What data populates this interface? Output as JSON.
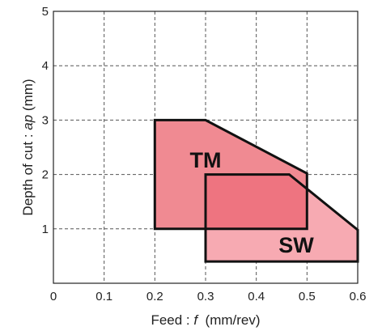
{
  "chart_data": {
    "type": "area",
    "title": "",
    "xlabel_prefix": "Feed : ",
    "xlabel_var": "f",
    "xlabel_unit": "  (mm/rev)",
    "ylabel_prefix": "Depth of cut : ",
    "ylabel_var": "ap",
    "ylabel_unit": " (mm)",
    "xlim": [
      0,
      0.6
    ],
    "ylim": [
      0,
      5
    ],
    "x_ticks": [
      "0",
      "0.1",
      "0.2",
      "0.3",
      "0.4",
      "0.5",
      "0.6"
    ],
    "y_ticks": [
      "1",
      "2",
      "3",
      "4",
      "5"
    ],
    "grid": true,
    "regions": [
      {
        "label": "TM",
        "fill": "#f08a92",
        "points": [
          [
            0.2,
            1.0
          ],
          [
            0.2,
            3.0
          ],
          [
            0.3,
            3.0
          ],
          [
            0.5,
            2.02
          ],
          [
            0.5,
            1.0
          ]
        ]
      },
      {
        "label": "SW",
        "fill": "#f7aab2",
        "points": [
          [
            0.3,
            0.4
          ],
          [
            0.3,
            2.0
          ],
          [
            0.465,
            2.0
          ],
          [
            0.6,
            0.98
          ],
          [
            0.6,
            0.4
          ]
        ]
      }
    ],
    "overlap_fill": "#ee7480"
  }
}
